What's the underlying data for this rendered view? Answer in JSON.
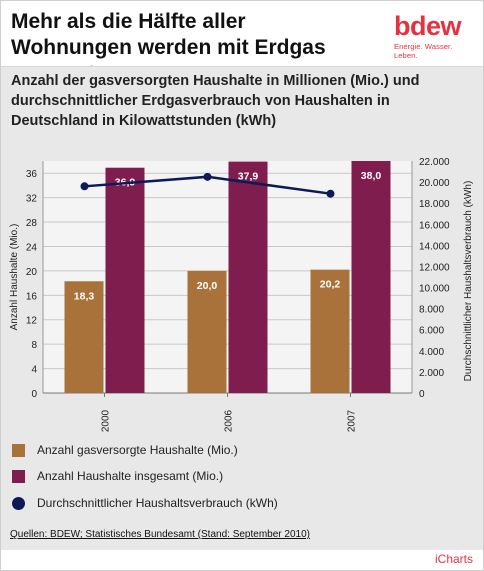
{
  "header": {
    "title": "Mehr als die Hälfte aller Wohnungen werden mit Erdgas versorgt",
    "logo_word": "bdew",
    "logo_tagline": "Energie. Wasser. Leben."
  },
  "subtitle": "Anzahl der gasversorgten Haushalte in Millionen (Mio.) und durchschnittlicher Erdgasverbrauch von Haushalten in Deutschland in Kilowattstunden (kWh)",
  "colors": {
    "gas_bars": "#a8723a",
    "total_bars": "#7f1d4e",
    "line": "#0d1a55",
    "brand": "#e6323f"
  },
  "chart_data": {
    "type": "bar",
    "categories": [
      "2000",
      "2006",
      "2007"
    ],
    "series": [
      {
        "name": "Anzahl gasversorgte Haushalte (Mio.)",
        "type": "bar",
        "axis": "left",
        "values": [
          18.3,
          20.0,
          20.2
        ],
        "labels": [
          "18,3",
          "20,0",
          "20,2"
        ]
      },
      {
        "name": "Anzahl Haushalte insgesamt (Mio.)",
        "type": "bar",
        "axis": "left",
        "values": [
          36.9,
          37.9,
          38.0
        ],
        "labels": [
          "36,9",
          "37,9",
          "38,0"
        ]
      },
      {
        "name": "Durchschnittlicher Haushaltsverbrauch (kWh)",
        "type": "line",
        "axis": "right",
        "values": [
          19600,
          20500,
          18900
        ]
      }
    ],
    "ylabel": "Anzahl Haushalte (Mio.)",
    "ylim": [
      0,
      38
    ],
    "yticks": [
      "0",
      "4",
      "8",
      "12",
      "16",
      "20",
      "24",
      "28",
      "32",
      "36"
    ],
    "y2label": "Durchschnittlicher Haushaltsverbrauch (kWh)",
    "y2lim": [
      0,
      22000
    ],
    "y2ticks": [
      "0",
      "2.000",
      "4.000",
      "6.000",
      "8.000",
      "10.000",
      "12.000",
      "14.000",
      "16.000",
      "18.000",
      "20.000",
      "22.000"
    ],
    "grid": true,
    "legend_position": "bottom"
  },
  "legend": [
    {
      "label": "Anzahl gasversorgte Haushalte (Mio.)"
    },
    {
      "label": "Anzahl Haushalte insgesamt (Mio.)"
    },
    {
      "label": "Durchschnittlicher Haushaltsverbrauch (kWh)"
    }
  ],
  "source": "Quellen: BDEW; Statistisches Bundesamt (Stand: September 2010)",
  "footer_brand": "iCharts"
}
